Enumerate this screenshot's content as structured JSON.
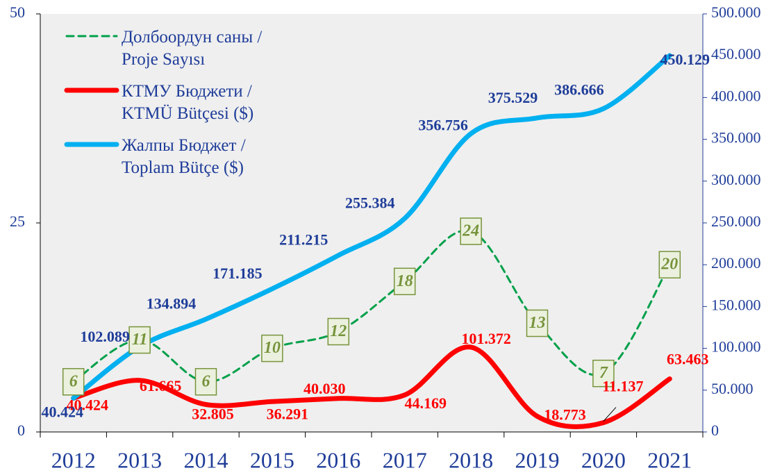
{
  "chart_data": {
    "type": "line",
    "categories": [
      "2012",
      "2013",
      "2014",
      "2015",
      "2016",
      "2017",
      "2018",
      "2019",
      "2020",
      "2021"
    ],
    "ylim": [
      0,
      50
    ],
    "yticks": [
      0,
      25,
      50
    ],
    "y2lim": [
      0,
      500000
    ],
    "y2ticks": [
      0,
      {
        "value": 50000,
        "label": "50.000"
      },
      {
        "value": 100000,
        "label": "100.000"
      },
      {
        "value": 150000,
        "label": "150.000"
      },
      {
        "value": 200000,
        "label": "200.000"
      },
      {
        "value": 250000,
        "label": "250.000"
      },
      {
        "value": 300000,
        "label": "300.000"
      },
      {
        "value": 350000,
        "label": "350.000"
      },
      {
        "value": 400000,
        "label": "400.000"
      },
      {
        "value": 450000,
        "label": "450.000"
      },
      {
        "value": 500000,
        "label": "500.000"
      }
    ],
    "series": [
      {
        "name": "Долбоордун саны /\nProje Sayısı",
        "color": "#00a04a",
        "dashed": true,
        "values": [
          6,
          11,
          6,
          10,
          12,
          18,
          24,
          13,
          7,
          20
        ]
      },
      {
        "name": "КТМУ Бюджети /\nKTMÜ Bütçesi ($)",
        "color": "#ff0000",
        "axis": "y2",
        "values": [
          40424,
          61665,
          32805,
          36291,
          40030,
          44169,
          101372,
          18773,
          11137,
          63463
        ],
        "value_labels": [
          "40.424",
          "61.665",
          "32.805",
          "36.291",
          "40.030",
          "44.169",
          "101.372",
          "18.773",
          "11.137",
          "63.463"
        ]
      },
      {
        "name": "Жалпы Бюджет /\nToplam Bütçe ($)",
        "color": "#00b0f0",
        "axis": "y2",
        "values": [
          40424,
          102089,
          134894,
          171185,
          211215,
          255384,
          356756,
          375529,
          386666,
          450129
        ],
        "value_labels": [
          "40.424",
          "102.089",
          "134.894",
          "171.185",
          "211.215",
          "255.384",
          "356.756",
          "375.529",
          "386.666",
          "450.129"
        ]
      }
    ]
  }
}
